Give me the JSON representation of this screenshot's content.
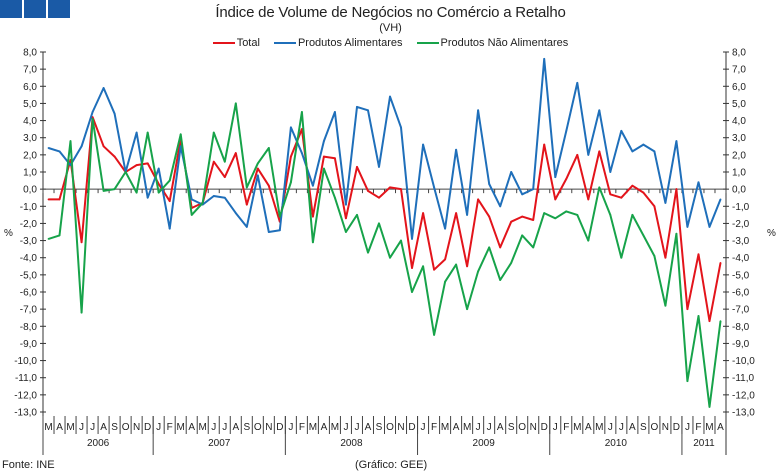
{
  "chart_data": {
    "type": "line",
    "title": "Índice de Volume de Negócios no Comércio a Retalho",
    "subtitle": "(VH)",
    "ylabel": "%",
    "ylabel_right": "%",
    "ylim": [
      -13,
      8
    ],
    "yticks": [
      "8,0",
      "7,0",
      "6,0",
      "5,0",
      "4,0",
      "3,0",
      "2,0",
      "1,0",
      "0,0",
      "-1,0",
      "-2,0",
      "-3,0",
      "-4,0",
      "-5,0",
      "-6,0",
      "-7,0",
      "-8,0",
      "-9,0",
      "-10,0",
      "-11,0",
      "-12,0",
      "-13,0"
    ],
    "legend_position": "top-center",
    "months": [
      "M",
      "A",
      "M",
      "J",
      "J",
      "A",
      "S",
      "O",
      "N",
      "D",
      "J",
      "F",
      "M",
      "A",
      "M",
      "J",
      "J",
      "A",
      "S",
      "O",
      "N",
      "D",
      "J",
      "F",
      "M",
      "A",
      "M",
      "J",
      "J",
      "A",
      "S",
      "O",
      "N",
      "D",
      "J",
      "F",
      "M",
      "A",
      "M",
      "J",
      "J",
      "A",
      "S",
      "O",
      "N",
      "D",
      "J",
      "F",
      "M",
      "A",
      "M",
      "J",
      "J",
      "A",
      "S",
      "O",
      "N",
      "D",
      "J",
      "F",
      "M",
      "A"
    ],
    "years": [
      {
        "label": "2006",
        "start": 0,
        "count": 10
      },
      {
        "label": "2007",
        "start": 10,
        "count": 12
      },
      {
        "label": "2008",
        "start": 22,
        "count": 12
      },
      {
        "label": "2009",
        "start": 34,
        "count": 12
      },
      {
        "label": "2010",
        "start": 46,
        "count": 12
      },
      {
        "label": "2011",
        "start": 58,
        "count": 4
      }
    ],
    "series": [
      {
        "name": "Total",
        "color": "#e3141b",
        "values": [
          -0.6,
          -0.6,
          1.7,
          -3.1,
          4.2,
          2.5,
          1.9,
          1.0,
          1.4,
          1.5,
          0.3,
          -0.7,
          2.9,
          -1.1,
          -0.8,
          1.6,
          0.7,
          2.1,
          -0.9,
          1.2,
          0.2,
          -1.9,
          1.9,
          3.5,
          -1.6,
          1.9,
          1.8,
          -1.7,
          1.3,
          -0.1,
          -0.5,
          0.1,
          0.0,
          -4.6,
          -1.4,
          -4.7,
          -4.1,
          -1.4,
          -4.5,
          -0.6,
          -1.6,
          -3.4,
          -1.9,
          -1.6,
          -1.8,
          2.6,
          -0.6,
          0.6,
          2.0,
          -0.6,
          2.2,
          -0.3,
          -0.5,
          0.2,
          -0.2,
          -1.0,
          -4.0,
          0.0,
          -7.0,
          -3.8,
          -7.7,
          -4.3
        ]
      },
      {
        "name": "Produtos Alimentares",
        "color": "#1f6fba",
        "values": [
          2.4,
          2.2,
          1.4,
          2.5,
          4.5,
          5.9,
          4.4,
          1.0,
          3.3,
          -0.5,
          1.2,
          -2.3,
          2.5,
          -0.6,
          -0.9,
          -0.4,
          -0.5,
          -1.4,
          -2.2,
          0.8,
          -2.5,
          -2.4,
          3.6,
          2.1,
          0.2,
          2.8,
          4.5,
          -0.9,
          4.8,
          4.6,
          1.3,
          5.4,
          3.6,
          -2.9,
          2.6,
          0.1,
          -2.3,
          2.3,
          -1.5,
          4.6,
          0.3,
          -1.0,
          1.0,
          -0.3,
          0.0,
          7.6,
          0.7,
          3.4,
          6.2,
          2.0,
          4.6,
          1.0,
          3.4,
          2.2,
          2.6,
          2.2,
          -0.8,
          2.8,
          -2.2,
          0.4,
          -2.2,
          -0.6
        ]
      },
      {
        "name": "Produtos Não Alimentares",
        "color": "#17a34a",
        "values": [
          -2.9,
          -2.7,
          2.8,
          -7.2,
          4.1,
          -0.1,
          0.0,
          1.0,
          -0.2,
          3.3,
          -0.2,
          0.5,
          3.2,
          -1.5,
          -0.8,
          3.3,
          1.6,
          5.0,
          0.1,
          1.5,
          2.4,
          -1.6,
          0.4,
          4.5,
          -3.1,
          1.2,
          -0.5,
          -2.5,
          -1.5,
          -3.7,
          -2.0,
          -4.0,
          -3.0,
          -6.0,
          -4.5,
          -8.5,
          -5.4,
          -4.4,
          -7.0,
          -4.8,
          -3.4,
          -5.3,
          -4.3,
          -2.7,
          -3.4,
          -1.4,
          -1.7,
          -1.3,
          -1.5,
          -3.0,
          0.1,
          -1.5,
          -4.0,
          -1.5,
          -2.7,
          -3.9,
          -6.8,
          -2.6,
          -11.2,
          -7.4,
          -12.7,
          -7.7
        ]
      }
    ]
  },
  "footer": {
    "source": "Fonte: INE",
    "credit": "(Gráfico: GEE)"
  }
}
